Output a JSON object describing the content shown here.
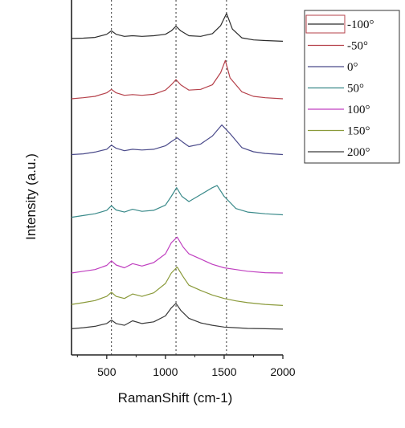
{
  "chart_data": {
    "type": "line",
    "title": "",
    "xlabel": "RamanShift (cm-1)",
    "ylabel": "Intensity (a.u.)",
    "xlim": [
      200,
      2000
    ],
    "xticks": [
      500,
      1000,
      1500,
      2000
    ],
    "y_ticks_shown": false,
    "grid": false,
    "reference_lines_x": [
      540,
      1090,
      1520
    ],
    "legend_position": "outside-top-right",
    "series": [
      {
        "name": "-100°",
        "color": "#2b2b2b",
        "x": [
          200,
          300,
          400,
          500,
          540,
          580,
          650,
          720,
          800,
          900,
          1000,
          1050,
          1090,
          1130,
          1200,
          1300,
          1400,
          1470,
          1520,
          1570,
          1650,
          1750,
          1850,
          2000
        ],
        "y": [
          0.908,
          0.909,
          0.911,
          0.92,
          0.93,
          0.92,
          0.914,
          0.916,
          0.914,
          0.916,
          0.92,
          0.93,
          0.943,
          0.93,
          0.916,
          0.914,
          0.922,
          0.945,
          0.98,
          0.935,
          0.91,
          0.904,
          0.902,
          0.9
        ]
      },
      {
        "name": "-50°",
        "color": "#b5404a",
        "x": [
          200,
          300,
          400,
          500,
          540,
          580,
          650,
          720,
          800,
          900,
          1000,
          1050,
          1090,
          1130,
          1200,
          1300,
          1400,
          1470,
          1510,
          1550,
          1650,
          1750,
          1850,
          2000
        ],
        "y": [
          0.735,
          0.738,
          0.742,
          0.752,
          0.762,
          0.752,
          0.745,
          0.747,
          0.745,
          0.748,
          0.76,
          0.775,
          0.79,
          0.775,
          0.76,
          0.762,
          0.775,
          0.81,
          0.845,
          0.795,
          0.755,
          0.742,
          0.738,
          0.735
        ]
      },
      {
        "name": "0°",
        "color": "#4a4a8a",
        "x": [
          200,
          300,
          400,
          500,
          540,
          580,
          650,
          720,
          800,
          900,
          1000,
          1050,
          1100,
          1150,
          1200,
          1300,
          1400,
          1480,
          1550,
          1650,
          1750,
          1850,
          2000
        ],
        "y": [
          0.575,
          0.577,
          0.582,
          0.59,
          0.602,
          0.593,
          0.586,
          0.59,
          0.588,
          0.59,
          0.6,
          0.612,
          0.623,
          0.61,
          0.598,
          0.605,
          0.628,
          0.66,
          0.635,
          0.595,
          0.583,
          0.578,
          0.575
        ]
      },
      {
        "name": "50°",
        "color": "#3a8a8a",
        "x": [
          200,
          300,
          400,
          500,
          540,
          580,
          650,
          720,
          800,
          900,
          1000,
          1050,
          1095,
          1140,
          1200,
          1300,
          1400,
          1440,
          1500,
          1600,
          1700,
          1850,
          2000
        ],
        "y": [
          0.395,
          0.4,
          0.405,
          0.415,
          0.428,
          0.416,
          0.41,
          0.418,
          0.412,
          0.415,
          0.43,
          0.455,
          0.48,
          0.455,
          0.44,
          0.46,
          0.48,
          0.486,
          0.455,
          0.42,
          0.41,
          0.405,
          0.402
        ]
      },
      {
        "name": "100°",
        "color": "#c040c0",
        "x": [
          200,
          300,
          400,
          500,
          540,
          580,
          650,
          720,
          800,
          900,
          1000,
          1050,
          1100,
          1150,
          1200,
          1300,
          1400,
          1500,
          1600,
          1700,
          1850,
          2000
        ],
        "y": [
          0.235,
          0.24,
          0.245,
          0.257,
          0.27,
          0.258,
          0.25,
          0.262,
          0.255,
          0.265,
          0.29,
          0.322,
          0.338,
          0.31,
          0.29,
          0.275,
          0.26,
          0.25,
          0.245,
          0.24,
          0.236,
          0.235
        ]
      },
      {
        "name": "150°",
        "color": "#8a9a3a",
        "x": [
          200,
          300,
          400,
          500,
          540,
          580,
          650,
          720,
          800,
          900,
          1000,
          1050,
          1100,
          1150,
          1200,
          1300,
          1400,
          1500,
          1600,
          1700,
          1850,
          2000
        ],
        "y": [
          0.145,
          0.15,
          0.156,
          0.168,
          0.18,
          0.168,
          0.162,
          0.175,
          0.168,
          0.178,
          0.205,
          0.235,
          0.252,
          0.225,
          0.2,
          0.185,
          0.172,
          0.162,
          0.155,
          0.15,
          0.145,
          0.142
        ]
      },
      {
        "name": "200°",
        "color": "#3a3a3a",
        "x": [
          200,
          300,
          400,
          500,
          540,
          580,
          650,
          720,
          800,
          900,
          1000,
          1050,
          1090,
          1130,
          1200,
          1300,
          1400,
          1500,
          1600,
          1700,
          1850,
          2000
        ],
        "y": [
          0.075,
          0.078,
          0.082,
          0.09,
          0.1,
          0.09,
          0.085,
          0.098,
          0.09,
          0.095,
          0.112,
          0.135,
          0.148,
          0.128,
          0.105,
          0.092,
          0.085,
          0.08,
          0.078,
          0.076,
          0.075,
          0.074
        ]
      }
    ]
  }
}
